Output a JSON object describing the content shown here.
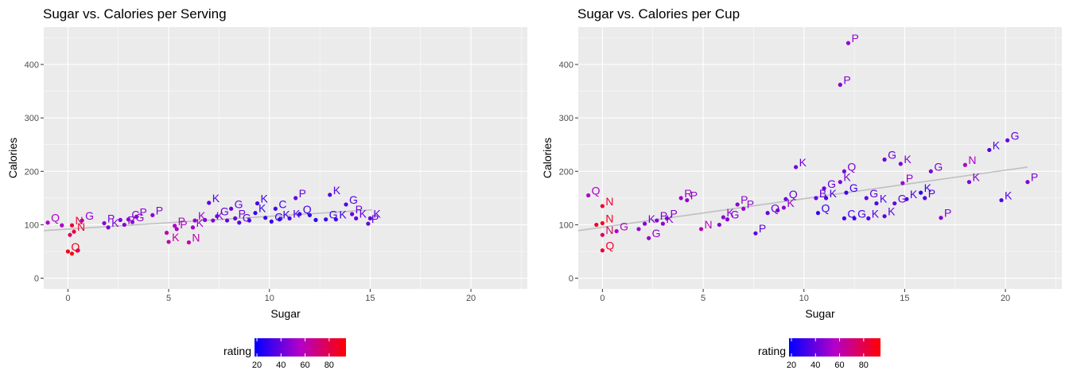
{
  "chart_data": [
    {
      "type": "scatter",
      "title": "Sugar vs. Calories per Serving",
      "xlabel": "Sugar",
      "ylabel": "Calories",
      "xlim": [
        -1.2,
        22.8
      ],
      "ylim": [
        -20,
        470
      ],
      "x_ticks": [
        0,
        5,
        10,
        15,
        20
      ],
      "y_ticks": [
        0,
        100,
        200,
        300,
        400
      ],
      "grid": true,
      "background": "#ebebeb",
      "color_scale": {
        "name": "rating",
        "low": "#0000ff",
        "high": "#ff0000",
        "min": 18,
        "max": 94,
        "breaks": [
          20,
          40,
          60,
          80
        ]
      },
      "legend_position": "bottom",
      "trend_line": {
        "x0": -1.2,
        "y0": 89,
        "x1": 15.1,
        "y1": 128,
        "color": "#bfbfbf"
      },
      "points": [
        {
          "x": -1.0,
          "y": 104,
          "rating": 55,
          "label": "Q"
        },
        {
          "x": -0.3,
          "y": 99,
          "rating": 55,
          "label": ""
        },
        {
          "x": 0.1,
          "y": 81,
          "rating": 75,
          "label": ""
        },
        {
          "x": 0.2,
          "y": 99,
          "rating": 85,
          "label": "N"
        },
        {
          "x": 0.3,
          "y": 87,
          "rating": 85,
          "label": "N"
        },
        {
          "x": 0.0,
          "y": 50,
          "rating": 90,
          "label": "Q"
        },
        {
          "x": 0.2,
          "y": 46,
          "rating": 90,
          "label": ""
        },
        {
          "x": 0.5,
          "y": 52,
          "rating": 72,
          "label": ""
        },
        {
          "x": 0.7,
          "y": 108,
          "rating": 50,
          "label": "G"
        },
        {
          "x": 1.8,
          "y": 103,
          "rating": 45,
          "label": "P"
        },
        {
          "x": 2.0,
          "y": 95,
          "rating": 45,
          "label": "K"
        },
        {
          "x": 2.6,
          "y": 109,
          "rating": 45,
          "label": ""
        },
        {
          "x": 2.8,
          "y": 100,
          "rating": 46,
          "label": "P"
        },
        {
          "x": 3.0,
          "y": 110,
          "rating": 48,
          "label": "C"
        },
        {
          "x": 3.2,
          "y": 105,
          "rating": 50,
          "label": "G"
        },
        {
          "x": 3.4,
          "y": 115,
          "rating": 46,
          "label": "P"
        },
        {
          "x": 4.2,
          "y": 118,
          "rating": 47,
          "label": "P"
        },
        {
          "x": 4.9,
          "y": 85,
          "rating": 60,
          "label": ""
        },
        {
          "x": 5.0,
          "y": 68,
          "rating": 62,
          "label": "K"
        },
        {
          "x": 5.3,
          "y": 98,
          "rating": 55,
          "label": "P"
        },
        {
          "x": 5.4,
          "y": 92,
          "rating": 55,
          "label": "P"
        },
        {
          "x": 6.0,
          "y": 67,
          "rating": 62,
          "label": "N"
        },
        {
          "x": 6.2,
          "y": 95,
          "rating": 52,
          "label": "K"
        },
        {
          "x": 6.3,
          "y": 108,
          "rating": 50,
          "label": "K"
        },
        {
          "x": 6.8,
          "y": 109,
          "rating": 45,
          "label": ""
        },
        {
          "x": 7.0,
          "y": 141,
          "rating": 38,
          "label": "K"
        },
        {
          "x": 7.2,
          "y": 108,
          "rating": 45,
          "label": "K"
        },
        {
          "x": 7.4,
          "y": 116,
          "rating": 40,
          "label": "G"
        },
        {
          "x": 7.9,
          "y": 108,
          "rating": 40,
          "label": ""
        },
        {
          "x": 8.1,
          "y": 130,
          "rating": 40,
          "label": "G"
        },
        {
          "x": 8.3,
          "y": 112,
          "rating": 40,
          "label": "P"
        },
        {
          "x": 8.5,
          "y": 104,
          "rating": 38,
          "label": "G"
        },
        {
          "x": 9.0,
          "y": 108,
          "rating": 34,
          "label": ""
        },
        {
          "x": 9.3,
          "y": 122,
          "rating": 30,
          "label": "K"
        },
        {
          "x": 9.4,
          "y": 140,
          "rating": 33,
          "label": "K"
        },
        {
          "x": 9.8,
          "y": 113,
          "rating": 30,
          "label": ""
        },
        {
          "x": 10.1,
          "y": 106,
          "rating": 30,
          "label": "G"
        },
        {
          "x": 10.3,
          "y": 130,
          "rating": 32,
          "label": "C"
        },
        {
          "x": 10.5,
          "y": 110,
          "rating": 30,
          "label": "K"
        },
        {
          "x": 11.0,
          "y": 112,
          "rating": 35,
          "label": "K"
        },
        {
          "x": 11.3,
          "y": 150,
          "rating": 40,
          "label": "P"
        },
        {
          "x": 11.5,
          "y": 120,
          "rating": 30,
          "label": "Q"
        },
        {
          "x": 12.0,
          "y": 118,
          "rating": 30,
          "label": ""
        },
        {
          "x": 12.3,
          "y": 109,
          "rating": 28,
          "label": ""
        },
        {
          "x": 12.8,
          "y": 110,
          "rating": 30,
          "label": "G"
        },
        {
          "x": 13.0,
          "y": 156,
          "rating": 36,
          "label": "K"
        },
        {
          "x": 13.3,
          "y": 110,
          "rating": 32,
          "label": "K"
        },
        {
          "x": 13.8,
          "y": 138,
          "rating": 35,
          "label": "G"
        },
        {
          "x": 14.1,
          "y": 120,
          "rating": 40,
          "label": "P"
        },
        {
          "x": 14.3,
          "y": 112,
          "rating": 38,
          "label": "K"
        },
        {
          "x": 14.9,
          "y": 102,
          "rating": 38,
          "label": "P"
        },
        {
          "x": 15.0,
          "y": 112,
          "rating": 38,
          "label": "K"
        }
      ]
    },
    {
      "type": "scatter",
      "title": "Sugar vs. Calories per Cup",
      "xlabel": "Sugar",
      "ylabel": "Calories",
      "xlim": [
        -1.2,
        22.8
      ],
      "ylim": [
        -20,
        470
      ],
      "x_ticks": [
        0,
        5,
        10,
        15,
        20
      ],
      "y_ticks": [
        0,
        100,
        200,
        300,
        400
      ],
      "grid": true,
      "background": "#ebebeb",
      "color_scale": {
        "name": "rating",
        "low": "#0000ff",
        "high": "#ff0000",
        "min": 18,
        "max": 94,
        "breaks": [
          20,
          40,
          60,
          80
        ]
      },
      "legend_position": "bottom",
      "trend_line": {
        "x0": -1.2,
        "y0": 89,
        "x1": 21.1,
        "y1": 208,
        "color": "#bfbfbf"
      },
      "points": [
        {
          "x": -0.7,
          "y": 155,
          "rating": 55,
          "label": "Q"
        },
        {
          "x": -0.3,
          "y": 100,
          "rating": 85,
          "label": ""
        },
        {
          "x": 0.0,
          "y": 135,
          "rating": 85,
          "label": "N"
        },
        {
          "x": 0.0,
          "y": 103,
          "rating": 90,
          "label": "N"
        },
        {
          "x": 0.0,
          "y": 81,
          "rating": 75,
          "label": "N"
        },
        {
          "x": 0.0,
          "y": 52,
          "rating": 85,
          "label": "Q"
        },
        {
          "x": 0.7,
          "y": 88,
          "rating": 55,
          "label": "G"
        },
        {
          "x": 1.8,
          "y": 92,
          "rating": 50,
          "label": ""
        },
        {
          "x": 2.1,
          "y": 102,
          "rating": 45,
          "label": "K"
        },
        {
          "x": 2.3,
          "y": 75,
          "rating": 50,
          "label": "G"
        },
        {
          "x": 2.7,
          "y": 108,
          "rating": 45,
          "label": "P"
        },
        {
          "x": 3.0,
          "y": 102,
          "rating": 48,
          "label": "K"
        },
        {
          "x": 3.2,
          "y": 112,
          "rating": 46,
          "label": "P"
        },
        {
          "x": 3.9,
          "y": 150,
          "rating": 52,
          "label": "R"
        },
        {
          "x": 4.2,
          "y": 146,
          "rating": 50,
          "label": "P"
        },
        {
          "x": 4.9,
          "y": 92,
          "rating": 58,
          "label": "N"
        },
        {
          "x": 5.8,
          "y": 100,
          "rating": 45,
          "label": ""
        },
        {
          "x": 6.0,
          "y": 114,
          "rating": 48,
          "label": "K"
        },
        {
          "x": 6.2,
          "y": 110,
          "rating": 45,
          "label": "G"
        },
        {
          "x": 6.7,
          "y": 138,
          "rating": 48,
          "label": "P"
        },
        {
          "x": 7.0,
          "y": 130,
          "rating": 50,
          "label": "P"
        },
        {
          "x": 7.6,
          "y": 84,
          "rating": 38,
          "label": "P"
        },
        {
          "x": 8.2,
          "y": 122,
          "rating": 40,
          "label": "Q"
        },
        {
          "x": 8.7,
          "y": 127,
          "rating": 45,
          "label": ""
        },
        {
          "x": 9.1,
          "y": 148,
          "rating": 40,
          "label": "Q"
        },
        {
          "x": 9.0,
          "y": 132,
          "rating": 48,
          "label": "K"
        },
        {
          "x": 9.6,
          "y": 208,
          "rating": 42,
          "label": "K"
        },
        {
          "x": 10.6,
          "y": 150,
          "rating": 40,
          "label": "B"
        },
        {
          "x": 10.7,
          "y": 122,
          "rating": 30,
          "label": "Q"
        },
        {
          "x": 11.0,
          "y": 168,
          "rating": 40,
          "label": "G"
        },
        {
          "x": 11.1,
          "y": 150,
          "rating": 35,
          "label": "K"
        },
        {
          "x": 11.8,
          "y": 180,
          "rating": 45,
          "label": "K"
        },
        {
          "x": 11.8,
          "y": 362,
          "rating": 45,
          "label": "P"
        },
        {
          "x": 12.0,
          "y": 200,
          "rating": 44,
          "label": "Q"
        },
        {
          "x": 12.2,
          "y": 440,
          "rating": 50,
          "label": "P"
        },
        {
          "x": 12.1,
          "y": 160,
          "rating": 32,
          "label": "G"
        },
        {
          "x": 12.0,
          "y": 112,
          "rating": 32,
          "label": "C"
        },
        {
          "x": 12.5,
          "y": 112,
          "rating": 32,
          "label": "G"
        },
        {
          "x": 13.1,
          "y": 150,
          "rating": 38,
          "label": "G"
        },
        {
          "x": 13.2,
          "y": 112,
          "rating": 36,
          "label": "K"
        },
        {
          "x": 13.6,
          "y": 140,
          "rating": 35,
          "label": "K"
        },
        {
          "x": 14.0,
          "y": 222,
          "rating": 40,
          "label": "G"
        },
        {
          "x": 14.0,
          "y": 116,
          "rating": 38,
          "label": "K"
        },
        {
          "x": 14.5,
          "y": 140,
          "rating": 40,
          "label": "G"
        },
        {
          "x": 14.8,
          "y": 214,
          "rating": 45,
          "label": "K"
        },
        {
          "x": 14.9,
          "y": 178,
          "rating": 50,
          "label": "P"
        },
        {
          "x": 15.1,
          "y": 148,
          "rating": 35,
          "label": "K"
        },
        {
          "x": 15.8,
          "y": 160,
          "rating": 28,
          "label": "K"
        },
        {
          "x": 16.0,
          "y": 150,
          "rating": 35,
          "label": "P"
        },
        {
          "x": 16.3,
          "y": 200,
          "rating": 45,
          "label": "G"
        },
        {
          "x": 16.8,
          "y": 113,
          "rating": 45,
          "label": "P"
        },
        {
          "x": 18.0,
          "y": 212,
          "rating": 55,
          "label": "N"
        },
        {
          "x": 18.2,
          "y": 180,
          "rating": 45,
          "label": "K"
        },
        {
          "x": 19.2,
          "y": 240,
          "rating": 35,
          "label": "K"
        },
        {
          "x": 19.8,
          "y": 146,
          "rating": 35,
          "label": "K"
        },
        {
          "x": 20.1,
          "y": 258,
          "rating": 40,
          "label": "G"
        },
        {
          "x": 21.1,
          "y": 180,
          "rating": 45,
          "label": "P"
        }
      ]
    }
  ]
}
